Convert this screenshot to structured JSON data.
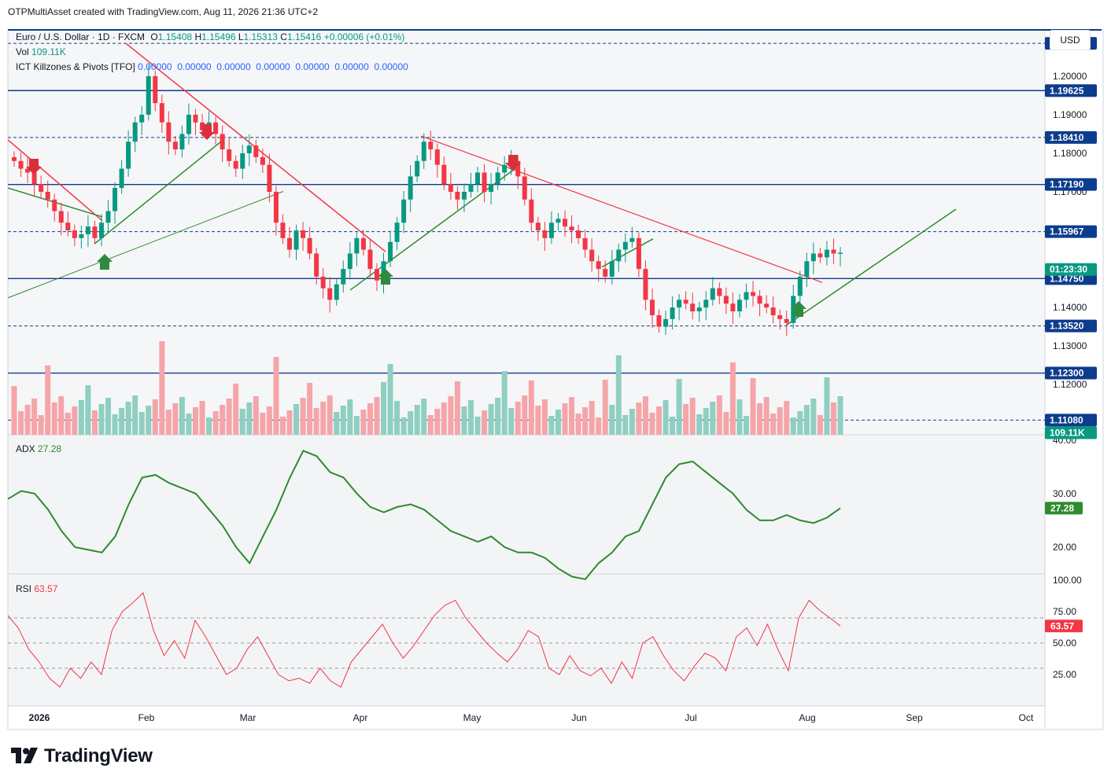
{
  "header": {
    "text": "OTPMultiAsset created with TradingView.com, Aug 11, 2026 21:36 UTC+2"
  },
  "currency": "USD",
  "legend": {
    "symbol": "Euro / U.S. Dollar · 1D · FXCM",
    "open_label": "O",
    "open": "1.15408",
    "high_label": "H",
    "high": "1.15496",
    "low_label": "L",
    "low": "1.15313",
    "close_label": "C",
    "close": "1.15416",
    "change": "+0.00006 (+0.01%)",
    "vol_label": "Vol",
    "vol": "109.11K",
    "ict_label": "ICT Killzones & Pivots [TFO]",
    "ict_values": "0.00000  0.00000  0.00000  0.00000  0.00000  0.00000  0.00000",
    "adx_label": "ADX",
    "adx": "27.28",
    "rsi_label": "RSI",
    "rsi": "63.57"
  },
  "footer": {
    "brand": "TradingView"
  },
  "colors": {
    "up": "#089981",
    "down": "#f23645",
    "level": "#0d3c8c",
    "adx": "#2e8b2e",
    "rsi": "#f23645",
    "trend_red": "#f23645",
    "trend_green": "#2e8b2e"
  },
  "chart_data": [
    {
      "type": "candlestick",
      "title": "Euro / U.S. Dollar · 1D · FXCM",
      "x_months": [
        "2026",
        "Feb",
        "Mar",
        "Apr",
        "May",
        "Jun",
        "Jul",
        "Aug",
        "Sep",
        "Oct"
      ],
      "y_ticks": [
        "1.20000",
        "1.19000",
        "1.18000",
        "1.17000",
        "1.16000",
        "1.15000",
        "1.14000",
        "1.13000",
        "1.12000"
      ],
      "ylim": [
        1.107,
        1.212
      ],
      "last_close": 1.15416,
      "countdown_label": "01:23:30",
      "levels": [
        {
          "value": 1.2085,
          "label": "1.20850",
          "style": "dashed"
        },
        {
          "value": 1.19625,
          "label": "1.19625",
          "style": "solid"
        },
        {
          "value": 1.1841,
          "label": "1.18410",
          "style": "dashed"
        },
        {
          "value": 1.1719,
          "label": "1.17190",
          "style": "solid"
        },
        {
          "value": 1.15967,
          "label": "1.15967",
          "style": "dashed"
        },
        {
          "value": 1.1475,
          "label": "1.14750",
          "style": "solid"
        },
        {
          "value": 1.1352,
          "label": "1.13520",
          "style": "dashed"
        },
        {
          "value": 1.123,
          "label": "1.12300",
          "style": "solid"
        },
        {
          "value": 1.1108,
          "label": "1.11080",
          "style": "dashed"
        }
      ],
      "close_series": [
        1.178,
        1.176,
        1.175,
        1.172,
        1.17,
        1.168,
        1.165,
        1.162,
        1.16,
        1.158,
        1.159,
        1.161,
        1.158,
        1.162,
        1.165,
        1.171,
        1.176,
        1.183,
        1.188,
        1.19,
        1.2,
        1.193,
        1.188,
        1.183,
        1.181,
        1.185,
        1.19,
        1.188,
        1.186,
        1.188,
        1.185,
        1.181,
        1.178,
        1.176,
        1.18,
        1.182,
        1.179,
        1.177,
        1.17,
        1.162,
        1.158,
        1.155,
        1.16,
        1.158,
        1.154,
        1.148,
        1.145,
        1.142,
        1.146,
        1.15,
        1.154,
        1.158,
        1.155,
        1.15,
        1.147,
        1.152,
        1.157,
        1.162,
        1.168,
        1.174,
        1.178,
        1.183,
        1.181,
        1.177,
        1.172,
        1.17,
        1.168,
        1.17,
        1.172,
        1.175,
        1.17,
        1.172,
        1.175,
        1.177,
        1.178,
        1.174,
        1.168,
        1.162,
        1.16,
        1.158,
        1.162,
        1.163,
        1.161,
        1.16,
        1.158,
        1.155,
        1.152,
        1.15,
        1.148,
        1.152,
        1.155,
        1.157,
        1.158,
        1.15,
        1.142,
        1.138,
        1.135,
        1.137,
        1.14,
        1.142,
        1.141,
        1.139,
        1.14,
        1.142,
        1.145,
        1.143,
        1.141,
        1.139,
        1.142,
        1.144,
        1.143,
        1.141,
        1.14,
        1.138,
        1.137,
        1.136,
        1.143,
        1.148,
        1.152,
        1.154,
        1.153,
        1.155,
        1.154,
        1.1542
      ],
      "volume_label": "109.11K"
    },
    {
      "type": "line",
      "title": "ADX",
      "last_value": 27.28,
      "y_ticks": [
        "40.00",
        "30.00",
        "20.00"
      ],
      "ylim": [
        15,
        41
      ],
      "values": [
        29,
        30.5,
        30,
        27,
        23,
        20,
        19.5,
        19,
        22,
        28,
        33,
        33.5,
        32,
        31,
        30,
        27,
        24,
        20,
        17,
        22,
        27,
        33,
        38,
        37,
        34,
        33,
        30,
        27.5,
        26.5,
        27.5,
        28,
        27,
        25,
        23,
        22,
        21,
        22,
        20,
        19,
        19,
        18,
        16,
        14.5,
        14,
        17,
        19,
        22,
        23,
        28,
        33,
        35.5,
        36,
        34,
        32,
        30,
        27,
        25,
        25,
        26,
        25,
        24.5,
        25.5,
        27.28
      ]
    },
    {
      "type": "line",
      "title": "RSI",
      "last_value": 63.57,
      "y_ticks": [
        "100.00",
        "75.00",
        "50.00",
        "25.00"
      ],
      "ylim": [
        0,
        105
      ],
      "bands": [
        30,
        50,
        70
      ],
      "values": [
        72,
        62,
        45,
        35,
        22,
        15,
        30,
        22,
        35,
        25,
        60,
        75,
        82,
        90,
        60,
        40,
        52,
        38,
        68,
        55,
        40,
        25,
        30,
        45,
        55,
        40,
        25,
        20,
        22,
        18,
        30,
        20,
        15,
        35,
        45,
        55,
        65,
        50,
        38,
        48,
        60,
        72,
        80,
        84,
        70,
        60,
        50,
        42,
        35,
        45,
        60,
        55,
        30,
        25,
        40,
        28,
        24,
        30,
        18,
        35,
        22,
        50,
        55,
        40,
        28,
        20,
        32,
        42,
        38,
        28,
        55,
        62,
        48,
        65,
        45,
        28,
        70,
        84,
        76,
        70,
        63.57
      ]
    }
  ]
}
